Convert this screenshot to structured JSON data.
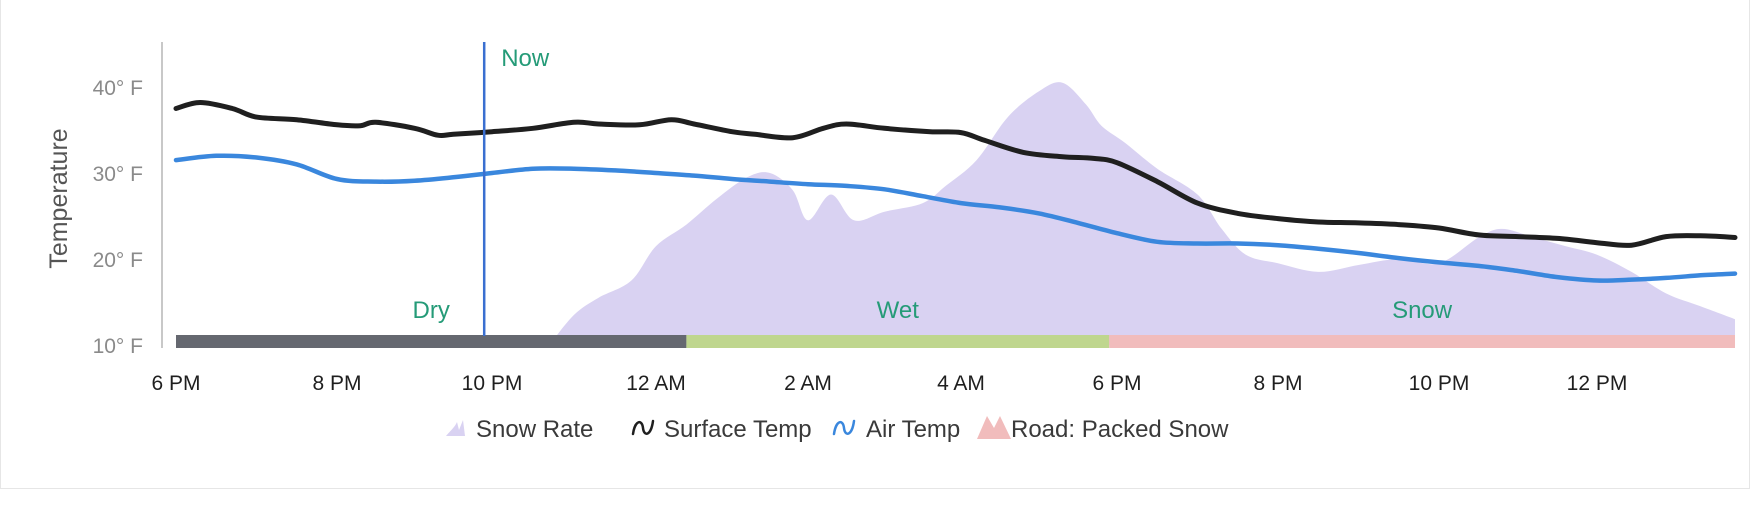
{
  "chart_data": {
    "type": "area",
    "ylabel": "Temperature",
    "ylim": [
      10,
      45
    ],
    "yticks": [
      "40° F",
      "30° F",
      "20° F",
      "10° F"
    ],
    "ytick_values": [
      40,
      30,
      20,
      10
    ],
    "x_start_hour": 18,
    "x_end_hour": 68,
    "xtick_labels": [
      "6 PM",
      "8 PM",
      "10 PM",
      "12 AM",
      "2 AM",
      "4 AM",
      "6 PM",
      "8 PM",
      "10 PM",
      "12 PM"
    ],
    "xtick_hours": [
      18,
      20,
      22,
      24,
      26,
      28,
      30,
      32,
      34,
      36
    ],
    "now": {
      "label": "Now",
      "hour": 21.9
    },
    "series": [
      {
        "name": "Surface Temp",
        "kind": "line",
        "color": "#1f1f1f",
        "x": [
          18,
          18.3,
          18.7,
          19,
          19.5,
          20,
          20.3,
          20.5,
          21,
          21.3,
          21.5,
          22,
          22.5,
          23,
          23.3,
          23.8,
          24.2,
          24.5,
          25,
          25.3,
          25.8,
          26.2,
          26.5,
          27,
          27.6,
          28,
          28.3,
          28.8,
          29.3,
          29.7,
          30,
          30.5,
          31,
          31.5,
          32,
          32.5,
          33,
          33.5,
          34,
          34.5,
          35,
          35.5,
          36,
          36.5,
          37,
          37.5,
          38
        ],
        "values": [
          37.5,
          38.2,
          37.5,
          36.5,
          36.2,
          35.6,
          35.5,
          35.9,
          35.2,
          34.4,
          34.5,
          34.8,
          35.2,
          35.9,
          35.7,
          35.6,
          36.2,
          35.7,
          34.8,
          34.5,
          34.1,
          35.2,
          35.7,
          35.2,
          34.8,
          34.7,
          33.8,
          32.4,
          31.9,
          31.7,
          31.2,
          29.0,
          26.5,
          25.3,
          24.7,
          24.3,
          24.2,
          24.0,
          23.6,
          22.8,
          22.6,
          22.4,
          21.9,
          21.6,
          22.6,
          22.7,
          22.5
        ]
      },
      {
        "name": "Air Temp",
        "kind": "line",
        "color": "#3a87dd",
        "x": [
          18,
          18.5,
          19,
          19.5,
          20,
          20.5,
          21,
          21.5,
          22,
          22.5,
          23,
          23.5,
          24,
          24.5,
          25,
          25.5,
          26,
          26.5,
          27,
          27.5,
          28,
          28.5,
          29,
          29.5,
          30,
          30.5,
          31,
          31.5,
          32,
          32.5,
          33,
          33.5,
          34,
          34.5,
          35,
          35.5,
          36,
          36.5,
          37,
          37.5,
          38
        ],
        "values": [
          31.5,
          32.0,
          31.8,
          31.0,
          29.3,
          29.0,
          29.1,
          29.5,
          30.0,
          30.5,
          30.5,
          30.3,
          30.0,
          29.7,
          29.3,
          29.0,
          28.7,
          28.5,
          28.1,
          27.3,
          26.5,
          26.0,
          25.3,
          24.2,
          23.0,
          22.0,
          21.8,
          21.8,
          21.6,
          21.2,
          20.7,
          20.1,
          19.6,
          19.2,
          18.6,
          17.9,
          17.5,
          17.6,
          17.8,
          18.1,
          18.3
        ]
      },
      {
        "name": "Snow Rate",
        "kind": "area",
        "color": "#d9d2f2",
        "x": [
          22.7,
          23,
          23.3,
          23.7,
          24,
          24.4,
          24.8,
          25.2,
          25.5,
          25.8,
          26,
          26.3,
          26.6,
          27,
          27.5,
          27.8,
          28.2,
          28.6,
          29,
          29.3,
          29.6,
          29.8,
          30.1,
          30.5,
          31,
          31.3,
          31.6,
          32,
          32.5,
          33,
          33.5,
          34,
          34.5,
          34.8,
          35.2,
          35.6,
          36,
          36.5,
          37,
          37.5,
          38
        ],
        "values": [
          10.0,
          13.5,
          15.5,
          17.5,
          21.5,
          24.0,
          27.0,
          29.5,
          30.0,
          28.0,
          24.5,
          27.5,
          24.5,
          25.5,
          26.5,
          28.5,
          31.5,
          36.5,
          39.5,
          40.5,
          38.0,
          35.5,
          33.5,
          30.5,
          27.5,
          23.5,
          20.5,
          19.5,
          18.5,
          19.3,
          20.0,
          19.5,
          22.5,
          23.5,
          22.5,
          21.5,
          20.5,
          18.5,
          16.0,
          14.5,
          13.0
        ]
      }
    ],
    "road_conditions": [
      {
        "label": "Dry",
        "start_hour": 18,
        "end_hour": 24.4,
        "color": "#656870"
      },
      {
        "label": "Wet",
        "start_hour": 24.4,
        "end_hour": 29.9,
        "color": "#bfd68e"
      },
      {
        "label": "Snow",
        "start_hour": 29.9,
        "end_hour": 38,
        "color": "#f1bcbc"
      }
    ],
    "label_color": "#259b78",
    "legend": [
      {
        "label": "Snow Rate",
        "icon": "snow-rate-icon",
        "color": "#d9d2f2"
      },
      {
        "label": "Surface Temp",
        "icon": "surface-temp-icon",
        "color": "#1f1f1f"
      },
      {
        "label": "Air Temp",
        "icon": "air-temp-icon",
        "color": "#3a87dd"
      },
      {
        "label": "Road: Packed Snow",
        "icon": "road-packed-snow-icon",
        "color": "#f1bcbc"
      }
    ]
  }
}
